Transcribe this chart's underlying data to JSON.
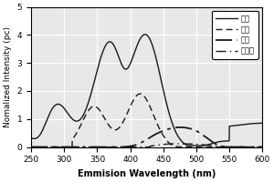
{
  "xlabel": "Emmision Wavelength (nm)",
  "ylabel": "Nomalized Intensity (pc)",
  "xlim": [
    250,
    600
  ],
  "ylim": [
    0,
    5
  ],
  "yticks": [
    0,
    1,
    2,
    3,
    4,
    5
  ],
  "xticks": [
    250,
    300,
    350,
    400,
    450,
    500,
    550,
    600
  ],
  "legend": [
    "页岩",
    "芳经",
    "非经",
    "沥青质"
  ],
  "bg_color": "#e8e8e8",
  "line_color": "#1a1a1a",
  "figsize": [
    3.0,
    2.0
  ],
  "dpi": 100
}
